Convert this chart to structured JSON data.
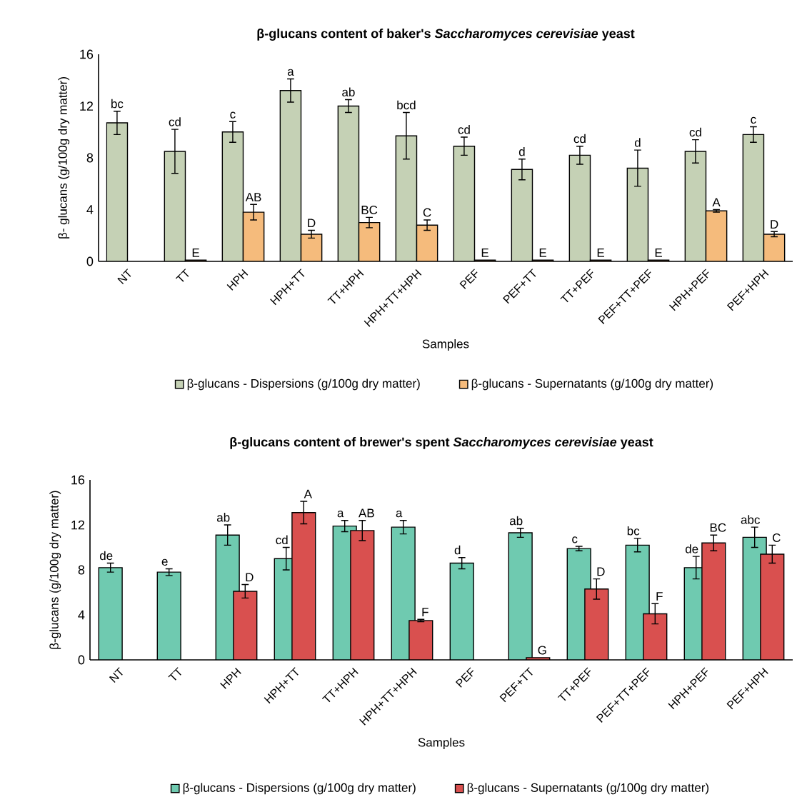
{
  "chart_data": [
    {
      "type": "bar",
      "title": "β-glucans  content of baker's *Saccharomyces cerevisiae* yeast",
      "xlabel": "Samples",
      "ylabel": "β- glucans (g/100g dry matter)",
      "categories": [
        "NT",
        "TT",
        "HPH",
        "HPH+TT",
        "TT+HPH",
        "HPH+TT+HPH",
        "PEF",
        "PEF+TT",
        "TT+PEF",
        "PEF+TT+PEF",
        "HPH+PEF",
        "PEF+HPH"
      ],
      "ylim": [
        0,
        16
      ],
      "yticks": [
        0,
        4,
        8,
        12,
        16
      ],
      "legend": "bottom",
      "series": [
        {
          "name": "β-glucans - Dispersions (g/100g dry matter)",
          "color": "#c5d1b5",
          "values": [
            10.7,
            8.5,
            10.0,
            13.2,
            12.0,
            9.7,
            8.9,
            7.1,
            8.2,
            7.2,
            8.5,
            9.8
          ],
          "errors": [
            0.9,
            1.7,
            0.8,
            0.9,
            0.5,
            1.8,
            0.7,
            0.8,
            0.7,
            1.4,
            0.9,
            0.6
          ],
          "value_labels": [
            "bc",
            "cd",
            "c",
            "a",
            "ab",
            "bcd",
            "cd",
            "d",
            "cd",
            "d",
            "cd",
            "c"
          ]
        },
        {
          "name": "β-glucans - Supernatants (g/100g dry matter)",
          "color": "#f5bb7c",
          "values": [
            null,
            0.1,
            3.8,
            2.1,
            3.0,
            2.8,
            0.1,
            0.1,
            0.1,
            0.1,
            3.9,
            2.1
          ],
          "errors": [
            null,
            null,
            0.6,
            0.3,
            0.4,
            0.4,
            null,
            null,
            null,
            null,
            0.1,
            0.2
          ],
          "value_labels": [
            null,
            "E",
            "AB",
            "D",
            "BC",
            "C",
            "E",
            "E",
            "E",
            "E",
            "A",
            "D"
          ]
        }
      ]
    },
    {
      "type": "bar",
      "title": "β-glucans  content of brewer's spent *Saccharomyces cerevisiae* yeast",
      "xlabel": "Samples",
      "ylabel": "β-glucans (g/100g dry matter)",
      "categories": [
        "NT",
        "TT",
        "HPH",
        "HPH+TT",
        "TT+HPH",
        "HPH+TT+HPH",
        "PEF",
        "PEF+TT",
        "TT+PEF",
        "PEF+TT+PEF",
        "HPH+PEF",
        "PEF+HPH"
      ],
      "ylim": [
        0,
        16
      ],
      "yticks": [
        0,
        4,
        8,
        12,
        16
      ],
      "legend": "bottom",
      "series": [
        {
          "name": "β-glucans - Dispersions (g/100g dry matter)",
          "color": "#6fcab0",
          "values": [
            8.2,
            7.8,
            11.1,
            9.0,
            11.9,
            11.8,
            8.6,
            11.3,
            9.9,
            10.2,
            8.2,
            10.9
          ],
          "errors": [
            0.4,
            0.3,
            0.9,
            1.0,
            0.5,
            0.6,
            0.5,
            0.4,
            0.2,
            0.6,
            1.0,
            0.9
          ],
          "value_labels": [
            "de",
            "e",
            "ab",
            "cd",
            "a",
            "a",
            "d",
            "ab",
            "c",
            "bc",
            "de",
            "abc"
          ]
        },
        {
          "name": "β-glucans - Supernatants (g/100g dry matter)",
          "color": "#d9504f",
          "values": [
            null,
            null,
            6.1,
            13.1,
            11.5,
            3.5,
            null,
            0.2,
            6.3,
            4.1,
            10.4,
            9.4
          ],
          "errors": [
            null,
            null,
            0.6,
            1.0,
            0.9,
            0.1,
            null,
            null,
            0.9,
            0.9,
            0.7,
            0.8
          ],
          "value_labels": [
            null,
            null,
            "D",
            "A",
            "AB",
            "F",
            null,
            "G",
            "D",
            "F",
            "BC",
            "C"
          ]
        }
      ]
    }
  ]
}
